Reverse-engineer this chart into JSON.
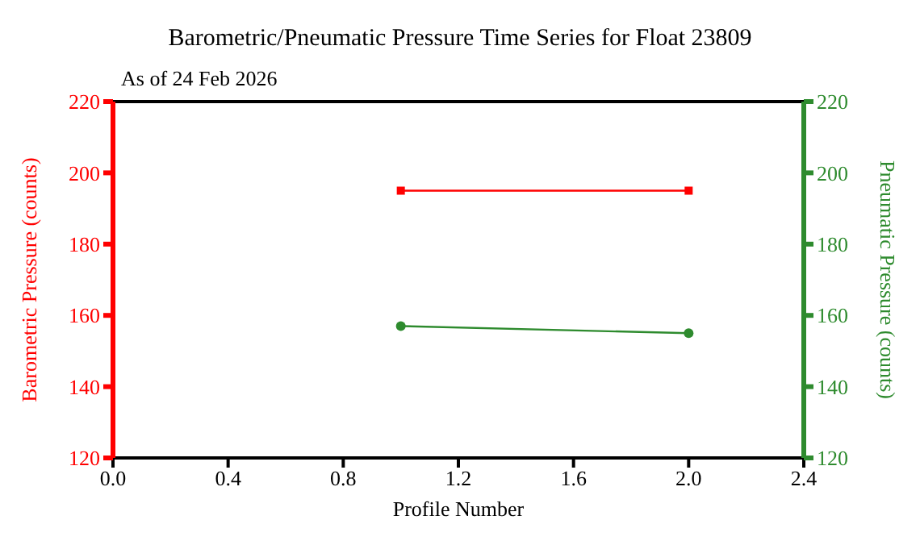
{
  "chart_data": {
    "type": "line",
    "title": "Barometric/Pneumatic Pressure Time Series for Float 23809",
    "subtitle": "As of 24 Feb 2026",
    "xlabel": "Profile Number",
    "ylabel": "Barometric Pressure (counts)",
    "y2label": "Pneumatic Pressure (counts)",
    "x": [
      1,
      2
    ],
    "series": [
      {
        "color": "#ff0000",
        "values": [
          195,
          195
        ],
        "marker": "square"
      },
      {
        "color": "#2e8b2e",
        "values": [
          157,
          155
        ],
        "axis": "y2",
        "marker": "circle"
      }
    ],
    "xlim": [
      0,
      2.4
    ],
    "xticks": [
      {
        "value": 0,
        "label": "0.0"
      },
      0.4,
      0.8,
      1.2,
      1.6,
      {
        "value": 2,
        "label": "2.0"
      },
      2.4
    ],
    "ylim": [
      120,
      220
    ],
    "yticks": [
      120,
      140,
      160,
      180,
      200,
      220
    ],
    "y2lim": [
      120,
      220
    ],
    "y2ticks": [
      120,
      140,
      160,
      180,
      200,
      220
    ],
    "legend": false
  }
}
